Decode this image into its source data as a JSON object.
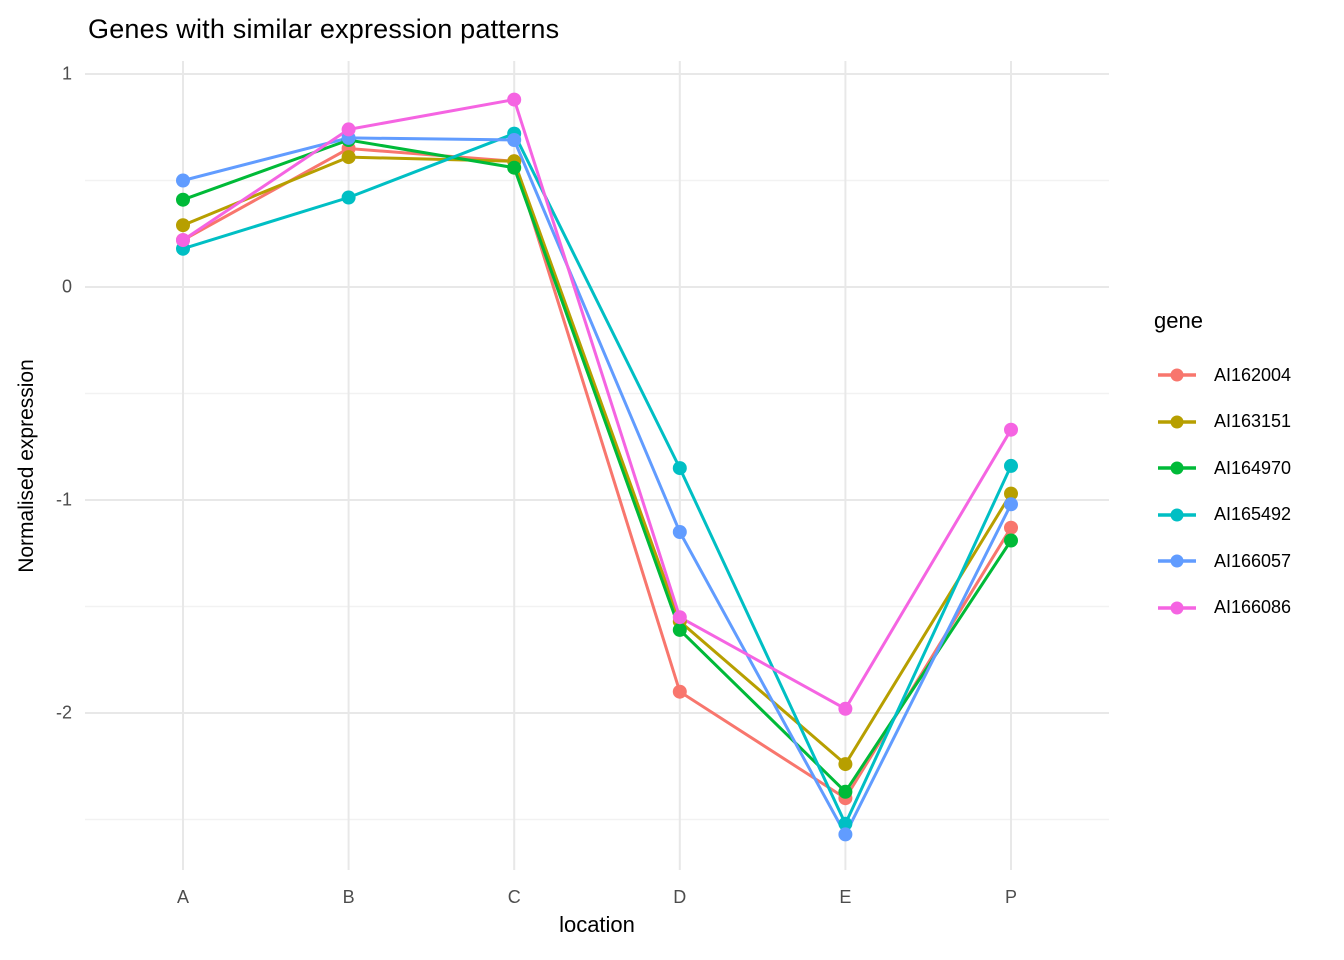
{
  "chart": {
    "title": "Genes with similar expression patterns",
    "xlabel": "location",
    "ylabel": "Normalised expression",
    "legend_title": "gene"
  },
  "chart_data": {
    "type": "line",
    "title": "Genes with similar expression patterns",
    "xlabel": "location",
    "ylabel": "Normalised expression",
    "legend_title": "gene",
    "legend_position": "right",
    "grid": true,
    "categories": [
      "A",
      "B",
      "C",
      "D",
      "E",
      "P"
    ],
    "yticks": [
      1,
      0,
      -1,
      -2
    ],
    "yticks_minor": [
      0.5,
      -0.5,
      -1.5,
      -2.5
    ],
    "ylim": [
      -2.737,
      1.061
    ],
    "series": [
      {
        "name": "AI162004",
        "color": "#F8766D",
        "values": [
          0.22,
          0.65,
          0.59,
          -1.9,
          -2.4,
          -1.13
        ]
      },
      {
        "name": "AI163151",
        "color": "#B79F00",
        "values": [
          0.29,
          0.61,
          0.59,
          -1.57,
          -2.24,
          -0.97
        ]
      },
      {
        "name": "AI164970",
        "color": "#00BA38",
        "values": [
          0.41,
          0.69,
          0.56,
          -1.61,
          -2.37,
          -1.19
        ]
      },
      {
        "name": "AI165492",
        "color": "#00BFC4",
        "values": [
          0.18,
          0.42,
          0.72,
          -0.85,
          -2.52,
          -0.84
        ]
      },
      {
        "name": "AI166057",
        "color": "#619CFF",
        "values": [
          0.5,
          0.7,
          0.69,
          -1.15,
          -2.57,
          -1.02
        ]
      },
      {
        "name": "AI166086",
        "color": "#F564E2",
        "values": [
          0.22,
          0.74,
          0.88,
          -1.55,
          -1.98,
          -0.67
        ]
      }
    ],
    "style": {
      "grid_major_color": "#e8e8e8",
      "grid_minor_color": "#f2f2f2",
      "background": "#ffffff",
      "tick_label_color": "#4d4d4d"
    }
  }
}
